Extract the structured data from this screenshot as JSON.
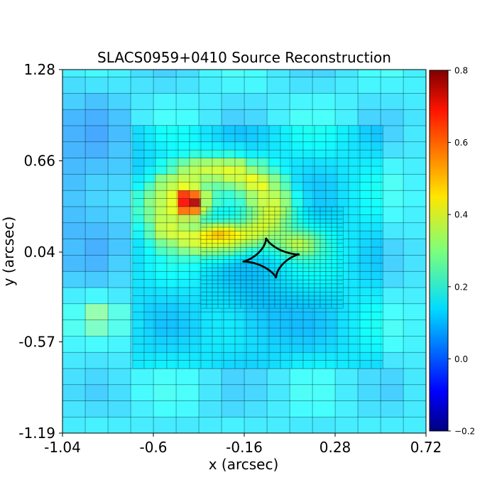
{
  "chart_data": {
    "type": "heatmap",
    "title": "SLACS0959+0410 Source Reconstruction",
    "xlabel": "x (arcsec)",
    "ylabel": "y (arcsec)",
    "xlim": [
      -1.04,
      0.72
    ],
    "ylim": [
      -1.19,
      1.28
    ],
    "x_ticks": [
      "-1.04",
      "-0.6",
      "-0.16",
      "0.28",
      "0.72"
    ],
    "y_ticks": [
      "1.28",
      "0.66",
      "0.04",
      "-0.57",
      "-1.19"
    ],
    "colorbar": {
      "colormap": "jet",
      "range": [
        -0.2,
        0.8
      ],
      "ticks": [
        "0.8",
        "0.6",
        "0.4",
        "0.2",
        "0.0",
        "−0.2"
      ]
    },
    "features": {
      "emission_peak_center": [
        -0.42,
        0.38
      ],
      "emission_peak_value": 0.78,
      "ring_center": [
        -0.3,
        0.35
      ],
      "ring_value": 0.34,
      "secondary_blob_center": [
        -0.87,
        -0.4
      ],
      "secondary_blob_value": 0.28,
      "background_value": 0.15,
      "caustic_center": [
        -0.03,
        0.0
      ],
      "caustic_half_width": 0.14,
      "caustic_shape": "astroid"
    },
    "grid": false,
    "legend": "none"
  }
}
